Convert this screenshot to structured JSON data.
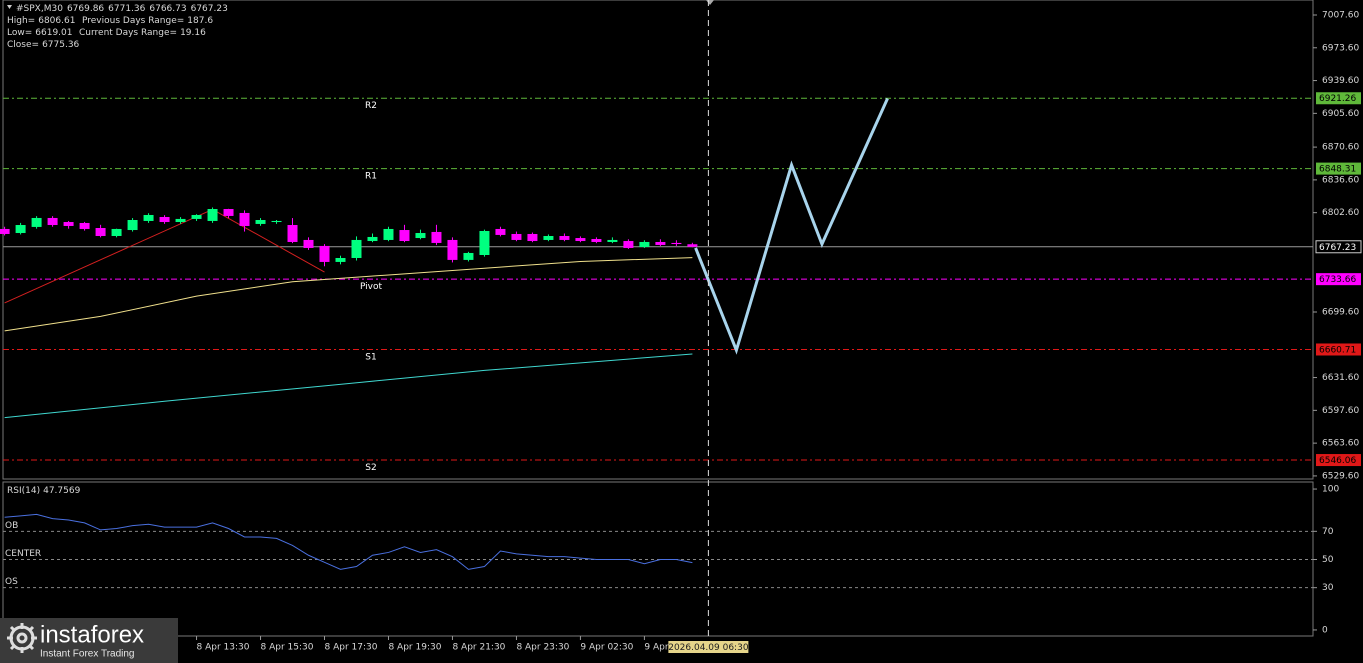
{
  "chart_data": [
    {
      "type": "candlestick",
      "title": "#SPX,M30",
      "stats": [
        {
          "label": "High=",
          "value": 6806.61
        },
        {
          "label": "Previous Days Range=",
          "value": 187.6
        },
        {
          "label": "Low=",
          "value": 6619.01
        },
        {
          "label": "Current Days Range=",
          "value": 19.16
        },
        {
          "label": "Close=",
          "value": 6775.36
        }
      ],
      "candles": {
        "open": [
          6785.7,
          6781.5,
          6787.8,
          6797.1,
          6792.9,
          6791.9,
          6786.7,
          6778.4,
          6784.6,
          6794.0,
          6798.1,
          6792.9,
          6796.1,
          6794.0,
          6806.4,
          6802.3,
          6790.9,
          6792.9,
          6789.8,
          6774.3,
          6768.1,
          6751.5,
          6755.6,
          6773.2,
          6774.3,
          6784.6,
          6776.3,
          6782.6,
          6774.3,
          6753.6,
          6758.7,
          6785.7,
          6780.5,
          6780.5,
          6774.3,
          6778.4,
          6776.3,
          6775.3,
          6772.2,
          6773.2,
          6767.0,
          6772.2,
          6771.2,
          6769.86
        ],
        "high": [
          6788,
          6792,
          6799,
          6799,
          6794,
          6793,
          6790,
          6786,
          6797,
          6802,
          6800,
          6798,
          6801,
          6808,
          6806.6,
          6805,
          6797,
          6795,
          6797,
          6777,
          6770,
          6758,
          6778,
          6781,
          6788,
          6790,
          6785,
          6790,
          6777,
          6762,
          6785,
          6788,
          6783,
          6782,
          6780,
          6781,
          6778,
          6777,
          6777,
          6775,
          6774,
          6775,
          6774,
          6771.36
        ],
        "low": [
          6779,
          6780,
          6786,
          6788,
          6786,
          6784,
          6777,
          6777,
          6783,
          6792,
          6791,
          6791,
          6794,
          6792,
          6797,
          6783,
          6789,
          6791,
          6771,
          6764,
          6747,
          6749,
          6753,
          6772,
          6773,
          6772,
          6775,
          6769,
          6751,
          6752,
          6757,
          6778,
          6773,
          6772,
          6773,
          6773,
          6772,
          6771,
          6771,
          6765,
          6766,
          6768,
          6768,
          6766.73
        ],
        "close": [
          6780.5,
          6789.8,
          6797.1,
          6789.8,
          6788.8,
          6785.7,
          6778.4,
          6785.7,
          6795.0,
          6800.2,
          6792.9,
          6796.1,
          6800.2,
          6806.4,
          6799.2,
          6788.8,
          6795.0,
          6794.0,
          6772.2,
          6766.0,
          6751.5,
          6755.6,
          6774.3,
          6777.4,
          6785.7,
          6773.2,
          6781.5,
          6771.2,
          6753.6,
          6760.8,
          6783.6,
          6779.5,
          6774.3,
          6773.2,
          6778.4,
          6774.3,
          6773.2,
          6772.2,
          6774.3,
          6766.0,
          6772.2,
          6769.1,
          6770.1,
          6767.23
        ]
      },
      "up_color": "#00ff80",
      "down_color": "#ff00ff",
      "last_price_color": "#9a9a9a",
      "lines": [
        {
          "color": "#d42020",
          "width": 1,
          "x": [
            0,
            13,
            20
          ],
          "values": [
            6709,
            6806,
            6741
          ]
        },
        {
          "color": "#f0e08c",
          "width": 1,
          "x": [
            0,
            6,
            12,
            18,
            24,
            30,
            36,
            43
          ],
          "values": [
            6680,
            6695,
            6716,
            6731,
            6738,
            6745,
            6752,
            6756
          ]
        },
        {
          "color": "#40d8d0",
          "width": 1,
          "x": [
            0,
            10,
            20,
            30,
            43
          ],
          "values": [
            6590,
            6607,
            6623,
            6639,
            6656
          ]
        },
        {
          "color": "#a8d4ec",
          "width": 3,
          "x": [
            43.2,
            45.75,
            49.2,
            51.1,
            55.2
          ],
          "values": [
            6766,
            6660,
            6852,
            6770,
            6921
          ]
        }
      ],
      "levels": [
        {
          "name": "R2",
          "value": 6921.26,
          "color": "#5fb83a"
        },
        {
          "name": "R1",
          "value": 6848.31,
          "color": "#5fb83a"
        },
        {
          "name": "Pivot",
          "value": 6733.66,
          "color": "#ff00ff"
        },
        {
          "name": "S1",
          "value": 6660.71,
          "color": "#e01818"
        },
        {
          "name": "S2",
          "value": 6546.06,
          "color": "#e01818"
        }
      ],
      "xlim": [
        -0.1,
        81.8
      ],
      "ylim": [
        6526.4,
        7023.15
      ],
      "yticks": [
        {
          "value": 7007.6,
          "label": "7007.60"
        },
        {
          "value": 6973.6,
          "label": "6973.60"
        },
        {
          "value": 6939.6,
          "label": "6939.60"
        },
        {
          "value": 6905.6,
          "label": "6905.60"
        },
        {
          "value": 6870.6,
          "label": "6870.60"
        },
        {
          "value": 6836.6,
          "label": "6836.60"
        },
        {
          "value": 6802.6,
          "label": "6802.60"
        },
        {
          "value": 6699.6,
          "label": "6699.60"
        },
        {
          "value": 6631.6,
          "label": "6631.60"
        },
        {
          "value": 6597.6,
          "label": "6597.60"
        },
        {
          "value": 6563.6,
          "label": "6563.60"
        },
        {
          "value": 6529.6,
          "label": "6529.60"
        }
      ],
      "xticks": [
        {
          "value": 12,
          "label": "8 Apr 13:30"
        },
        {
          "value": 16,
          "label": "8 Apr 15:30"
        },
        {
          "value": 20,
          "label": "8 Apr 17:30"
        },
        {
          "value": 24,
          "label": "8 Apr 19:30"
        },
        {
          "value": 28,
          "label": "8 Apr 21:30"
        },
        {
          "value": 32,
          "label": "8 Apr 23:30"
        },
        {
          "value": 36,
          "label": "9 Apr 02:30"
        },
        {
          "value": 40,
          "label": "9 Apr"
        }
      ],
      "crosshair": {
        "value": 44,
        "label": "2026.04.09 06:30"
      }
    },
    {
      "type": "line",
      "title": "RSI(14)",
      "color": "#4a70e0",
      "values": [
        80,
        81,
        82,
        79,
        78,
        76,
        71,
        72,
        74,
        75,
        73,
        73,
        73,
        76,
        72,
        66,
        66,
        65,
        60,
        53,
        48,
        43,
        45,
        53,
        55,
        59,
        55,
        57,
        52,
        43,
        45,
        56,
        54,
        53,
        52,
        52,
        51,
        50,
        50,
        50,
        47,
        50,
        50,
        47.7569
      ],
      "levels": [
        {
          "name": "OB",
          "value": 70
        },
        {
          "name": "CENTER",
          "value": 50
        },
        {
          "name": "OS",
          "value": 30
        }
      ],
      "xlim": [
        -0.1,
        81.8
      ],
      "ylim": [
        -4.3,
        105
      ],
      "yticks": [
        0,
        30,
        50,
        70,
        100
      ]
    }
  ],
  "logo": {
    "name": "instaforex",
    "tagline": "Instant Forex Trading"
  }
}
